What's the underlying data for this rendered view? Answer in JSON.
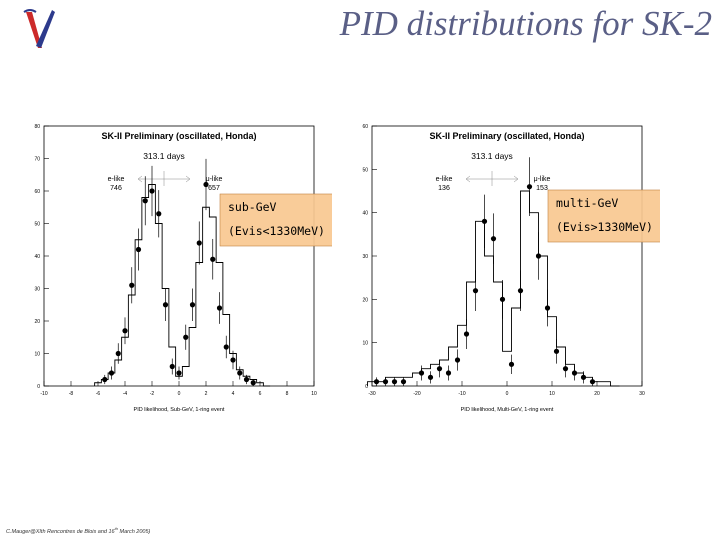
{
  "slide": {
    "title": "PID distributions for SK-2",
    "footer": {
      "pre": "C.Mauger@XIth Rencontres de Blois and 16",
      "sup": "th",
      "post": " March 2005)"
    }
  },
  "colors": {
    "title": "#5a5f86",
    "box_fill": "#f8c890",
    "box_border": "#c08040",
    "logo_red": "#cc2a2a",
    "logo_blue": "#2d3a8c"
  },
  "chart_data": [
    {
      "type": "scatter",
      "title": "SK-II Preliminary (oscillated, Honda)",
      "exposure": "313.1 days",
      "xlabel": "PID likelihood, Sub-GeV, 1-ring event",
      "ylabel": "",
      "xlim": [
        -10,
        10
      ],
      "ylim": [
        0,
        80
      ],
      "xticks": [
        -10,
        -8,
        -6,
        -4,
        -2,
        0,
        2,
        4,
        6,
        8,
        10
      ],
      "yticks": [
        0,
        10,
        20,
        30,
        40,
        50,
        60,
        70,
        80
      ],
      "annotations": [
        {
          "label": "e-like",
          "count": "746",
          "side": "left"
        },
        {
          "label": "μ-like",
          "count": "657",
          "side": "right"
        }
      ],
      "box": {
        "line1": "sub-GeV",
        "line2": "(Evis<1330MeV)"
      },
      "series": [
        {
          "name": "MC (oscillated)",
          "style": "histogram",
          "x": [
            -6.0,
            -5.5,
            -5.0,
            -4.5,
            -4.0,
            -3.5,
            -3.0,
            -2.5,
            -2.0,
            -1.5,
            -1.0,
            -0.5,
            0.0,
            0.5,
            1.0,
            1.5,
            2.0,
            2.5,
            3.0,
            3.5,
            4.0,
            4.5,
            5.0,
            5.5,
            6.0,
            6.5
          ],
          "y": [
            1,
            2,
            4,
            8,
            15,
            28,
            45,
            58,
            62,
            50,
            30,
            12,
            3,
            6,
            18,
            38,
            55,
            52,
            38,
            22,
            10,
            5,
            3,
            2,
            1,
            0
          ]
        },
        {
          "name": "Data",
          "style": "points",
          "x": [
            -5.5,
            -5.0,
            -4.5,
            -4.0,
            -3.5,
            -3.0,
            -2.5,
            -2.0,
            -1.5,
            -1.0,
            -0.5,
            0.0,
            0.5,
            1.0,
            1.5,
            2.0,
            2.5,
            3.0,
            3.5,
            4.0,
            4.5,
            5.0,
            5.5
          ],
          "y": [
            2,
            4,
            10,
            17,
            31,
            42,
            57,
            60,
            53,
            25,
            6,
            4,
            15,
            25,
            44,
            62,
            39,
            24,
            12,
            8,
            4,
            2,
            1
          ]
        }
      ]
    },
    {
      "type": "scatter",
      "title": "SK-II Preliminary (oscillated, Honda)",
      "exposure": "313.1 days",
      "xlabel": "PID likelihood, Multi-GeV, 1-ring event",
      "ylabel": "",
      "xlim": [
        -30,
        30
      ],
      "ylim": [
        0,
        60
      ],
      "xticks": [
        -30,
        -20,
        -10,
        0,
        10,
        20,
        30
      ],
      "yticks": [
        0,
        10,
        20,
        30,
        40,
        50,
        60
      ],
      "annotations": [
        {
          "label": "e-like",
          "count": "136",
          "side": "left"
        },
        {
          "label": "μ-like",
          "count": "153",
          "side": "right"
        }
      ],
      "box": {
        "line1": "multi-GeV",
        "line2": "(Evis>1330MeV)"
      },
      "series": [
        {
          "name": "MC (oscillated)",
          "style": "histogram",
          "x": [
            -30,
            -28,
            -26,
            -24,
            -22,
            -20,
            -18,
            -16,
            -14,
            -12,
            -10,
            -8,
            -6,
            -4,
            -2,
            0,
            2,
            4,
            6,
            8,
            10,
            12,
            14,
            16,
            18,
            20,
            22,
            24
          ],
          "y": [
            1,
            1,
            2,
            2,
            2,
            3,
            4,
            5,
            6,
            9,
            14,
            24,
            38,
            30,
            24,
            8,
            18,
            45,
            40,
            30,
            16,
            9,
            5,
            3,
            2,
            1,
            1,
            0
          ]
        },
        {
          "name": "Data",
          "style": "points",
          "x": [
            -29,
            -27,
            -25,
            -23,
            -19,
            -17,
            -15,
            -13,
            -11,
            -9,
            -7,
            -5,
            -3,
            -1,
            1,
            3,
            5,
            7,
            9,
            11,
            13,
            15,
            17,
            19
          ],
          "y": [
            1,
            1,
            1,
            1,
            3,
            2,
            4,
            3,
            6,
            12,
            22,
            38,
            34,
            20,
            5,
            22,
            46,
            30,
            18,
            8,
            4,
            3,
            2,
            1
          ]
        }
      ]
    }
  ]
}
